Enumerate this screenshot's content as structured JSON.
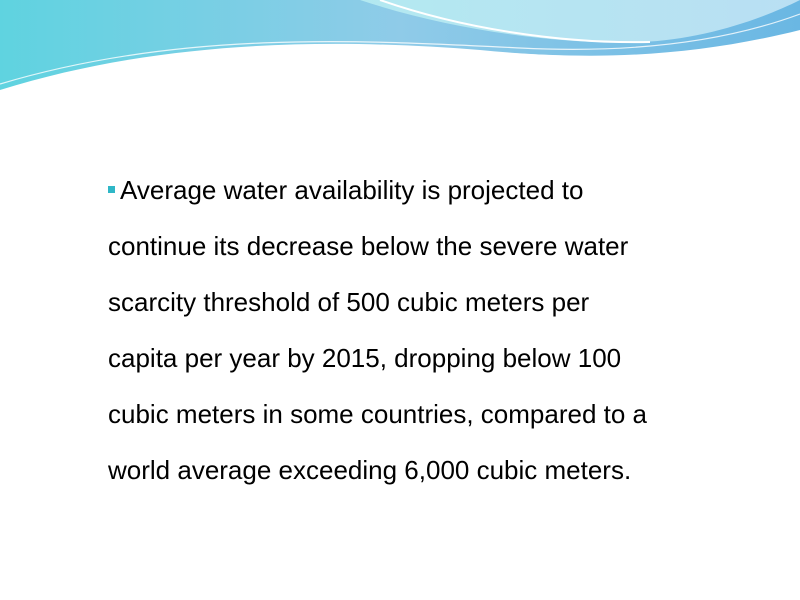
{
  "slide": {
    "bullet": {
      "lines": [
        "Average water availability is projected to",
        "continue its decrease below the severe water",
        "scarcity threshold of 500 cubic meters per",
        "capita per year by 2015, dropping below 100",
        "cubic meters in some countries, compared to a",
        "world average exceeding 6,000 cubic meters."
      ]
    }
  }
}
